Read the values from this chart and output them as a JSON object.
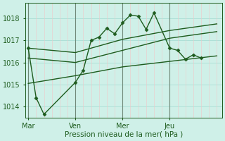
{
  "title": "",
  "xlabel": "Pression niveau de la mer( hPa )",
  "ylabel": "",
  "bg_color": "#cff0e8",
  "grid_color": "#a8ddd4",
  "minor_vgrid_color": "#f0c8c8",
  "major_vline_color": "#708878",
  "line_color": "#1e5c1e",
  "axis_label_color": "#1e5c1e",
  "tick_label_color": "#1e5c1e",
  "ylim": [
    1013.5,
    1018.7
  ],
  "yticks": [
    1014,
    1015,
    1016,
    1017,
    1018
  ],
  "xtick_labels": [
    "Mar",
    "Ven",
    "Mer",
    "Jeu"
  ],
  "xtick_positions": [
    0,
    36,
    72,
    108
  ],
  "vline_positions": [
    0,
    36,
    72,
    108
  ],
  "num_minor_vlines": 144,
  "series1_x": [
    0,
    6,
    12,
    36,
    42,
    48,
    54,
    60,
    66,
    72,
    78,
    84,
    90,
    96,
    108,
    114,
    120,
    126,
    132
  ],
  "series1_y": [
    1016.65,
    1014.4,
    1013.65,
    1015.1,
    1015.65,
    1017.0,
    1017.15,
    1017.55,
    1017.3,
    1017.8,
    1018.15,
    1018.1,
    1017.5,
    1018.25,
    1016.65,
    1016.55,
    1016.15,
    1016.35,
    1016.2
  ],
  "series2_x": [
    0,
    36,
    72,
    108,
    144
  ],
  "series2_y": [
    1016.65,
    1016.45,
    1017.05,
    1017.45,
    1017.75
  ],
  "series3_x": [
    0,
    36,
    72,
    108,
    144
  ],
  "series3_y": [
    1016.2,
    1016.0,
    1016.55,
    1017.1,
    1017.4
  ],
  "series4_x": [
    0,
    36,
    72,
    108,
    144
  ],
  "series4_y": [
    1015.05,
    1015.4,
    1015.8,
    1016.05,
    1016.3
  ],
  "marker": "D",
  "markersize": 2.5,
  "linewidth": 1.0,
  "xlabel_fontsize": 7.5,
  "tick_fontsize": 7
}
